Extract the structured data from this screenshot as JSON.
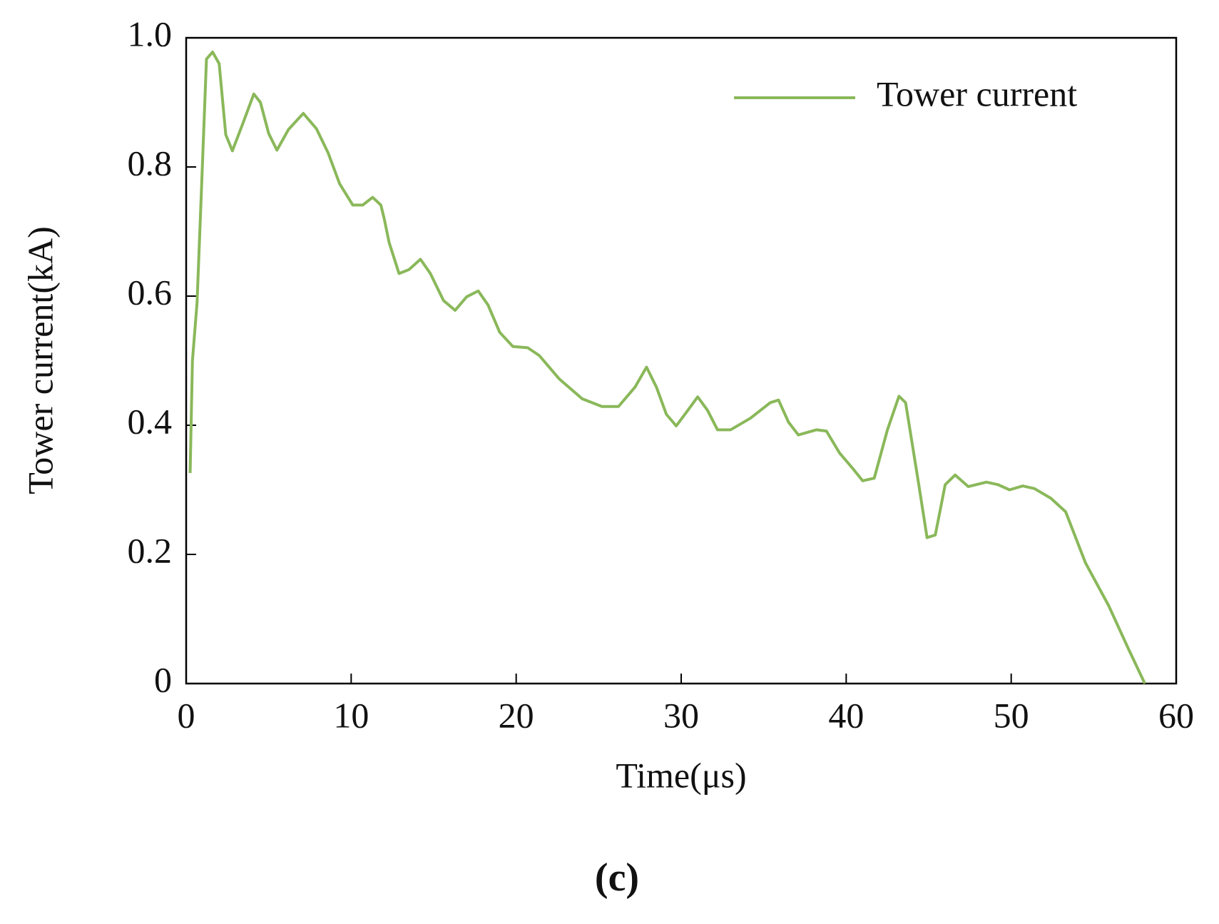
{
  "chart_data": {
    "type": "line",
    "caption": "(c)",
    "x_label": "Time(μs)",
    "y_label": "Tower current(kA)",
    "xlim": [
      0,
      60
    ],
    "xticks": [
      0,
      10,
      20,
      30,
      40,
      50,
      60
    ],
    "ylim": [
      0,
      1
    ],
    "yticks": [
      0,
      0.2,
      0.4,
      0.6,
      0.8,
      {
        "value": 1,
        "label": "1.0"
      }
    ],
    "legend": "upper right",
    "series": [
      {
        "name": "Tower current",
        "color": "#8ab85a",
        "x": [
          0.24,
          0.38,
          0.66,
          0.95,
          1.23,
          1.6,
          2.0,
          2.4,
          2.8,
          3.4,
          4.1,
          4.5,
          5.0,
          5.5,
          6.2,
          7.1,
          7.9,
          8.6,
          9.3,
          10.1,
          10.7,
          11.3,
          11.8,
          12.0,
          12.3,
          12.9,
          13.5,
          14.2,
          14.8,
          15.6,
          16.3,
          17.0,
          17.7,
          18.3,
          19.0,
          19.8,
          20.7,
          21.4,
          22.6,
          24.0,
          25.2,
          26.2,
          27.2,
          27.9,
          28.5,
          29.1,
          29.7,
          30.4,
          31.0,
          31.6,
          32.2,
          33.0,
          34.2,
          35.4,
          35.9,
          36.5,
          37.1,
          38.2,
          38.8,
          39.6,
          40.4,
          41.0,
          41.7,
          42.5,
          43.2,
          43.6,
          44.4,
          44.9,
          45.4,
          46.0,
          46.6,
          47.4,
          48.5,
          49.2,
          49.9,
          50.7,
          51.4,
          52.4,
          53.3,
          54.5,
          55.9,
          57.1,
          58.1
        ],
        "values": [
          0.326,
          0.5,
          0.59,
          0.78,
          0.967,
          0.978,
          0.96,
          0.85,
          0.825,
          0.865,
          0.913,
          0.9,
          0.852,
          0.826,
          0.858,
          0.883,
          0.859,
          0.822,
          0.774,
          0.741,
          0.741,
          0.753,
          0.741,
          0.72,
          0.683,
          0.635,
          0.641,
          0.657,
          0.635,
          0.593,
          0.578,
          0.599,
          0.608,
          0.586,
          0.544,
          0.522,
          0.52,
          0.508,
          0.472,
          0.441,
          0.429,
          0.429,
          0.459,
          0.49,
          0.459,
          0.417,
          0.399,
          0.423,
          0.444,
          0.423,
          0.393,
          0.393,
          0.411,
          0.435,
          0.439,
          0.405,
          0.385,
          0.393,
          0.391,
          0.357,
          0.333,
          0.314,
          0.318,
          0.393,
          0.445,
          0.435,
          0.308,
          0.226,
          0.23,
          0.308,
          0.323,
          0.305,
          0.312,
          0.308,
          0.3,
          0.306,
          0.302,
          0.287,
          0.266,
          0.187,
          0.121,
          0.054,
          0.0
        ]
      }
    ]
  }
}
